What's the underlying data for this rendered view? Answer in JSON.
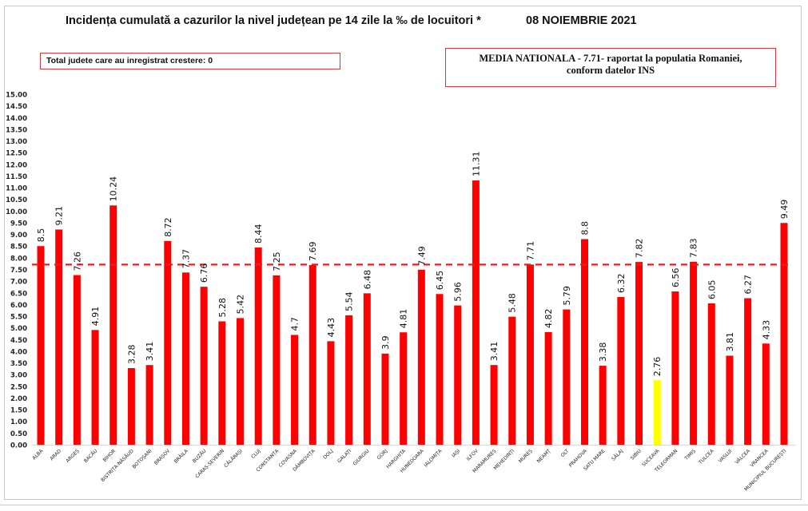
{
  "header": {
    "title": "Incidența cumulată a cazurilor la nivel județean pe 14 zile la ‰ de locuitori *",
    "date": "08 NOIEMBRIE 2021",
    "increase_box": "Total judete care au inregistrat crestere: 0",
    "national_box_line1": "MEDIA NATIONALA - 7.71-  raportat la populatia Romaniei,",
    "national_box_line2": "conform datelor INS"
  },
  "colors": {
    "bar": "#ff0000",
    "highlight_bar": "#ffff00",
    "average_line": "#e8201f"
  },
  "chart_data": {
    "type": "bar",
    "title": "Incidența cumulată a cazurilor la nivel județean pe 14 zile la ‰ de locuitori *",
    "xlabel": "",
    "ylabel": "",
    "ylim": [
      0,
      15
    ],
    "ytick_step": 0.5,
    "ytick_labels": [
      "0.00",
      "0.50",
      "1.00",
      "1.50",
      "2.00",
      "2.50",
      "3.00",
      "3.50",
      "4.00",
      "4.50",
      "5.00",
      "5.50",
      "6.00",
      "6.50",
      "7.00",
      "7.50",
      "8.00",
      "8.50",
      "9.00",
      "9.50",
      "10.00",
      "10.50",
      "11.00",
      "11.50",
      "12.00",
      "12.50",
      "13.00",
      "13.50",
      "14.00",
      "14.50",
      "15.00"
    ],
    "grid": false,
    "legend": "none",
    "reference_line": {
      "name": "Media nationala",
      "value": 7.71,
      "style": "dashed"
    },
    "highlighted_category": "SUCEAVA",
    "categories": [
      "ALBA",
      "ARAD",
      "ARGEȘ",
      "BACĂU",
      "BIHOR",
      "BISTRIȚA-NĂSĂUD",
      "BOTOȘANI",
      "BRAȘOV",
      "BRĂILA",
      "BUZĂU",
      "CARAȘ-SEVERIN",
      "CĂLĂRAȘI",
      "CLUJ",
      "CONSTANȚA",
      "COVASNA",
      "DÂMBOVIȚA",
      "DOLJ",
      "GALAȚI",
      "GIURGIU",
      "GORJ",
      "HARGHITA",
      "HUNEDOARA",
      "IALOMIȚA",
      "IAȘI",
      "ILFOV",
      "MARAMUREȘ",
      "MEHEDINȚI",
      "MUREȘ",
      "NEAMȚ",
      "OLT",
      "PRAHOVA",
      "SATU MARE",
      "SĂLAJ",
      "SIBIU",
      "SUCEAVA",
      "TELEORMAN",
      "TIMIȘ",
      "TULCEA",
      "VASLUI",
      "VÂLCEA",
      "VRANCEA",
      "MUNICIPIUL BUCUREȘTI"
    ],
    "values": [
      8.5,
      9.21,
      7.26,
      4.91,
      10.24,
      3.28,
      3.41,
      8.72,
      7.37,
      6.76,
      5.28,
      5.42,
      8.44,
      7.25,
      4.7,
      7.69,
      4.43,
      5.54,
      6.48,
      3.9,
      4.81,
      7.49,
      6.45,
      5.96,
      11.31,
      3.41,
      5.48,
      7.71,
      4.82,
      5.79,
      8.8,
      3.38,
      6.32,
      7.82,
      2.76,
      6.56,
      7.83,
      6.05,
      3.81,
      6.27,
      4.33,
      9.49
    ],
    "value_labels": [
      "8.5",
      "9.21",
      "7.26",
      "4.91",
      "10.24",
      "3.28",
      "3.41",
      "8.72",
      "7.37",
      "6.76",
      "5.28",
      "5.42",
      "8.44",
      "7.25",
      "4.7",
      "7.69",
      "4.43",
      "5.54",
      "6.48",
      "3.9",
      "4.81",
      "7.49",
      "6.45",
      "5.96",
      "11.31",
      "3.41",
      "5.48",
      "7.71",
      "4.82",
      "5.79",
      "8.8",
      "3.38",
      "6.32",
      "7.82",
      "2.76",
      "6.56",
      "7.83",
      "6.05",
      "3.81",
      "6.27",
      "4.33",
      "9.49"
    ]
  }
}
